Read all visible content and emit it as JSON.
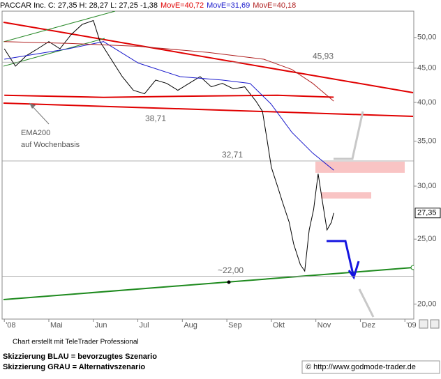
{
  "chart_data": {
    "type": "line",
    "log_y": true,
    "x": [
      4.0,
      4.25,
      4.5,
      4.75,
      5.0,
      5.25,
      5.5,
      5.75,
      6.0,
      6.15,
      6.4,
      6.65,
      6.9,
      7.15,
      7.4,
      7.65,
      7.9,
      8.15,
      8.4,
      8.65,
      8.9,
      9.15,
      9.4,
      9.65,
      9.8,
      9.9,
      10.0,
      10.15,
      10.25,
      10.4,
      10.5,
      10.65,
      10.75,
      10.85,
      10.95,
      11.05,
      11.15,
      11.25,
      11.35,
      11.4
    ],
    "series": [
      {
        "name": "PACCAR Inc. C: 27,35 H: 28,27 L: 27,25 -1,38",
        "color": "#000000",
        "values": [
          48.1,
          45.3,
          47.0,
          48.1,
          49.3,
          48.1,
          50.5,
          52.3,
          53.0,
          49.3,
          46.4,
          43.7,
          41.7,
          41.2,
          43.2,
          42.7,
          41.7,
          42.7,
          43.7,
          42.2,
          42.7,
          41.9,
          42.2,
          40.2,
          38.8,
          35.3,
          32.0,
          29.8,
          28.4,
          26.5,
          24.6,
          22.9,
          22.4,
          25.8,
          27.7,
          31.3,
          28.4,
          25.8,
          26.5,
          27.35
        ]
      },
      {
        "name": "MovE=40,72",
        "color": "#e00000",
        "x": [
          4.0,
          6.23,
          8.58,
          10.14,
          11.4
        ],
        "values": [
          41.0,
          40.7,
          40.9,
          41.0,
          40.72
        ]
      },
      {
        "name": "MovE=31,69",
        "color": "#1a1acc",
        "x": [
          4.0,
          5.44,
          6.23,
          7.01,
          7.95,
          8.89,
          9.52,
          9.99,
          10.46,
          10.93,
          11.4
        ],
        "values": [
          46.4,
          48.1,
          49.3,
          45.8,
          43.7,
          43.2,
          42.7,
          39.8,
          36.1,
          33.6,
          31.69
        ]
      },
      {
        "name": "MovE=40,18",
        "color": "#b02020",
        "x": [
          4.0,
          5.44,
          7.01,
          8.58,
          9.83,
          10.46,
          10.93,
          11.4
        ],
        "values": [
          49.3,
          49.0,
          48.5,
          47.5,
          46.4,
          44.8,
          42.7,
          40.18
        ]
      }
    ],
    "ylim": [
      18.9,
      55.8
    ],
    "yticks": [
      {
        "value": 20,
        "label": "20,00"
      },
      {
        "value": 25,
        "label": "25,00"
      },
      {
        "value": 30,
        "label": "30,00"
      },
      {
        "value": 35,
        "label": "35,00"
      },
      {
        "value": 40,
        "label": "40,00"
      },
      {
        "value": 45,
        "label": "45,00"
      },
      {
        "value": 50,
        "label": "50,00"
      }
    ],
    "xlim": [
      3.95,
      13.2
    ],
    "xticks": [
      {
        "value": 4,
        "label": "'08"
      },
      {
        "value": 5,
        "label": "Mai"
      },
      {
        "value": 6,
        "label": "Jun"
      },
      {
        "value": 7,
        "label": "Jul"
      },
      {
        "value": 8,
        "label": "Aug"
      },
      {
        "value": 9,
        "label": "Sep"
      },
      {
        "value": 10,
        "label": "Okt"
      },
      {
        "value": 11,
        "label": "Nov"
      },
      {
        "value": 12,
        "label": "Dez"
      },
      {
        "value": 13,
        "label": "'09"
      }
    ],
    "levels": [
      {
        "text": "45,93",
        "value": 45.93
      },
      {
        "text": "32,71",
        "value": 32.71
      },
      {
        "text": "~22,00",
        "value": 22
      }
    ],
    "low_label": {
      "text": "38,71",
      "value": 38.71
    },
    "last_label": {
      "value": 27.35,
      "label": "27,35"
    },
    "notes": [
      "EMA200",
      "auf Wochenbasis"
    ]
  },
  "footer": {
    "credit": "Chart erstellt mit TeleTrader Professional",
    "legend": [
      "Skizzierung BLAU = bevorzugtes Szenario",
      "Skizzierung GRAU = Alternativszenario"
    ],
    "url": "© http://www.godmode-trader.de"
  }
}
